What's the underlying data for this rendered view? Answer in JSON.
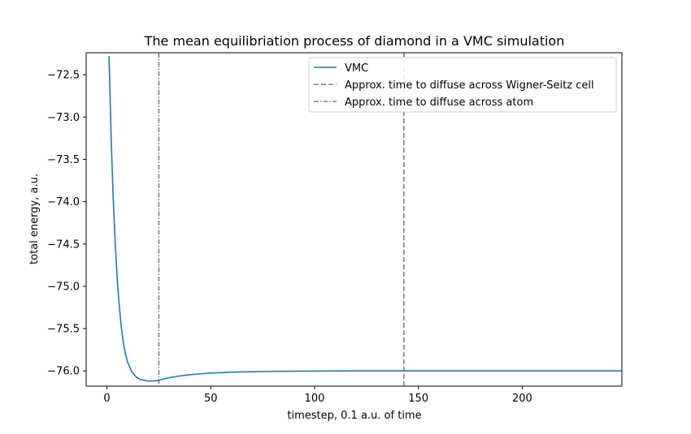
{
  "chart_data": {
    "type": "line",
    "title": "The mean equilibriation process of diamond in a VMC simulation",
    "xlabel": "timestep, 0.1 a.u. of time",
    "ylabel": "total energy, a.u.",
    "xlim": [
      -10,
      248
    ],
    "ylim": [
      -76.18,
      -72.24
    ],
    "x_ticks": [
      0,
      50,
      100,
      150,
      200
    ],
    "x_tick_labels": [
      "0",
      "50",
      "100",
      "150",
      "200"
    ],
    "y_ticks": [
      -72.5,
      -73.0,
      -73.5,
      -74.0,
      -74.5,
      -75.0,
      -75.5,
      -76.0
    ],
    "y_tick_labels": [
      "−72.5",
      "−73.0",
      "−73.5",
      "−74.0",
      "−74.5",
      "−75.0",
      "−75.5",
      "−76.0"
    ],
    "grid": false,
    "legend_position": "top-right",
    "series": [
      {
        "name": "VMC",
        "color": "#1f77b4",
        "style": "solid",
        "x": [
          1,
          2,
          3,
          4,
          5,
          6,
          7,
          8,
          9,
          10,
          12,
          14,
          16,
          18,
          20,
          22,
          24,
          25,
          28,
          30,
          35,
          40,
          45,
          50,
          55,
          60,
          65,
          70,
          80,
          90,
          100,
          110,
          120,
          130,
          140,
          150,
          160,
          170,
          180,
          190,
          200,
          210,
          220,
          230,
          240,
          248
        ],
        "y": [
          -72.28,
          -73.22,
          -73.95,
          -74.5,
          -74.93,
          -75.25,
          -75.5,
          -75.68,
          -75.81,
          -75.9,
          -76.01,
          -76.07,
          -76.1,
          -76.11,
          -76.12,
          -76.12,
          -76.115,
          -76.11,
          -76.09,
          -76.08,
          -76.06,
          -76.045,
          -76.035,
          -76.025,
          -76.02,
          -76.015,
          -76.012,
          -76.01,
          -76.005,
          -76.003,
          -76.002,
          -76.001,
          -76.0,
          -76.0,
          -76.0,
          -76.0,
          -76.0,
          -76.0,
          -76.0,
          -76.0,
          -76.0,
          -76.0,
          -76.0,
          -76.0,
          -76.0,
          -76.0
        ]
      }
    ],
    "vlines": [
      {
        "name": "Approx. time to diffuse across Wigner-Seitz cell",
        "x": 143,
        "color": "#7f7f7f",
        "style": "dashed"
      },
      {
        "name": "Approx. time to diffuse across atom",
        "x": 25,
        "color": "#7f7f7f",
        "style": "dashdot"
      }
    ]
  }
}
